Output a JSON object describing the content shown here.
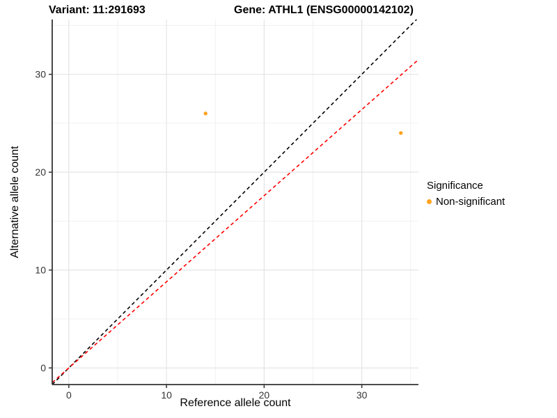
{
  "chart_data": {
    "type": "scatter",
    "title": {
      "left": "Variant: 11:291693",
      "right": "Gene: ATHL1 (ENSG00000142102)"
    },
    "xlabel": "Reference allele count",
    "ylabel": "Alternative allele count",
    "xlim": [
      -1.7,
      35.8
    ],
    "ylim": [
      -1.7,
      35.6
    ],
    "xticks": [
      0,
      10,
      20,
      30
    ],
    "yticks": [
      0,
      10,
      20,
      30
    ],
    "xminor": [
      5,
      15,
      25,
      35
    ],
    "yminor": [
      5,
      15,
      25,
      35
    ],
    "grid": true,
    "points": [
      {
        "x": 14,
        "y": 26,
        "series": "Non-significant"
      },
      {
        "x": 34,
        "y": 24,
        "series": "Non-significant"
      }
    ],
    "point_color": "#FFA320",
    "point_radius_px": 2.7,
    "lines": [
      {
        "name": "identity-line",
        "slope": 1,
        "intercept": 0,
        "color": "#000000",
        "style": "dashed"
      },
      {
        "name": "expected-ratio-line",
        "slope": 0.88,
        "intercept": 0,
        "color": "#FF0000",
        "style": "dashed"
      }
    ],
    "legend": {
      "position": "right",
      "title": "Significance",
      "items": [
        {
          "label": "Non-significant",
          "color": "#FFA320"
        }
      ]
    },
    "colors": {
      "grid_major": "#E4E4E4",
      "grid_minor": "#F1F1F1",
      "axis_line": "#333333",
      "tick_text": "#333333"
    }
  }
}
